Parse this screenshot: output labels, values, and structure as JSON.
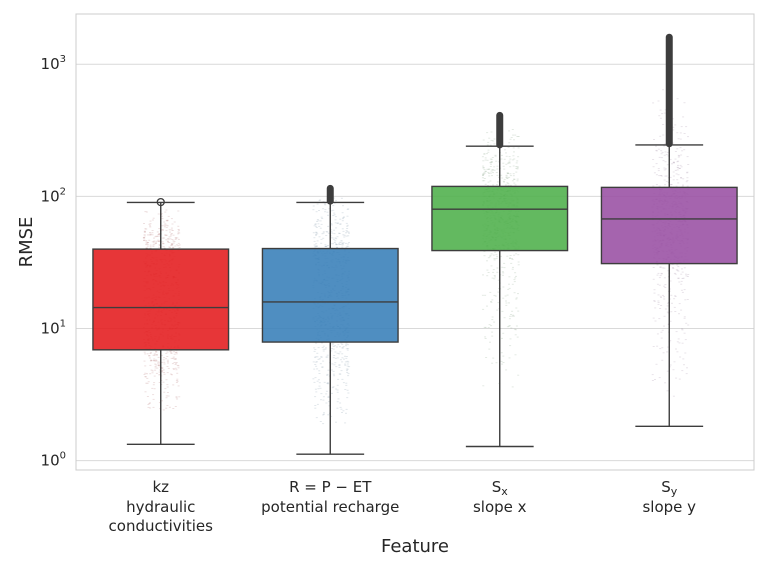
{
  "chart_data": {
    "type": "box",
    "xlabel": "Feature",
    "ylabel": "RMSE",
    "yscale": "log",
    "ylim": [
      0.85,
      2400
    ],
    "y_ticks": [
      {
        "value": 1,
        "base": "10",
        "exp": "0"
      },
      {
        "value": 10,
        "base": "10",
        "exp": "1"
      },
      {
        "value": 100,
        "base": "10",
        "exp": "2"
      },
      {
        "value": 1000,
        "base": "10",
        "exp": "3"
      }
    ],
    "grid": true,
    "categories": [
      {
        "symbol": "kz",
        "symbol_sub": "",
        "name_lines": [
          "hydraulic",
          "conductivities"
        ],
        "color": "#e41a1c",
        "whisker_low": 1.33,
        "q1": 6.9,
        "median": 14.4,
        "q3": 39.9,
        "whisker_high": 90,
        "outliers": [
          90.5
        ],
        "outlier_top": 90.5,
        "points_min": 2.2,
        "points_max": 85
      },
      {
        "symbol": "R = P − ET",
        "symbol_sub": "",
        "name_lines": [
          "potential recharge"
        ],
        "color": "#377eb8",
        "whisker_low": 1.12,
        "q1": 7.9,
        "median": 15.9,
        "q3": 40.3,
        "whisker_high": 90,
        "outliers": [
          92,
          115
        ],
        "outlier_top": 115,
        "points_min": 1.8,
        "points_max": 110
      },
      {
        "symbol": "S",
        "symbol_sub": "x",
        "name_lines": [
          "slope x"
        ],
        "color": "#4daf4a",
        "whisker_low": 1.28,
        "q1": 38.9,
        "median": 80,
        "q3": 119,
        "whisker_high": 240,
        "outliers": [
          245,
          410
        ],
        "outlier_top": 410,
        "points_min": 3,
        "points_max": 350
      },
      {
        "symbol": "S",
        "symbol_sub": "y",
        "name_lines": [
          "slope y"
        ],
        "color": "#984ea3",
        "whisker_low": 1.82,
        "q1": 31,
        "median": 67.5,
        "q3": 117,
        "whisker_high": 245,
        "outliers": [
          250,
          1600
        ],
        "outlier_top": 1600,
        "points_min": 3,
        "points_max": 700
      }
    ]
  }
}
